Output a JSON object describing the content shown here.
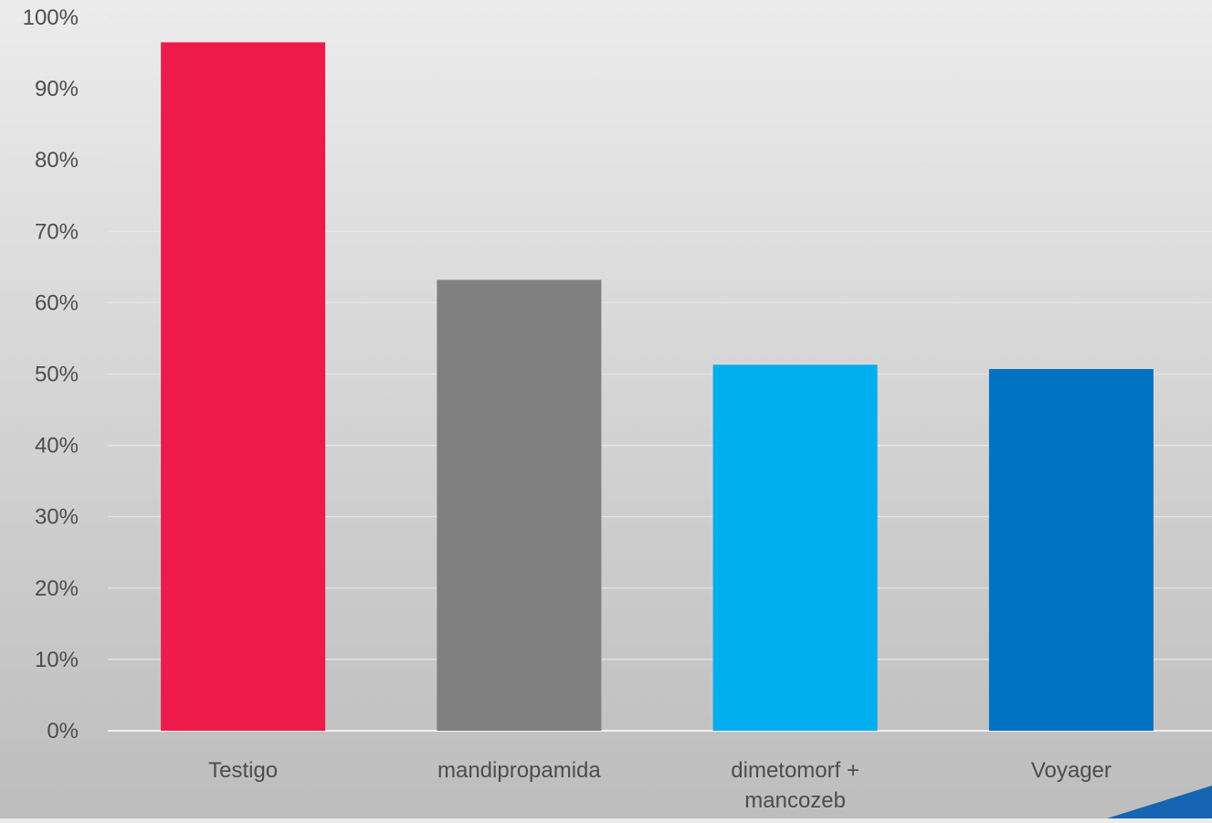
{
  "chart_data": {
    "type": "bar",
    "categories": [
      "Testigo",
      "mandipropamida",
      "dimetomorf + mancozeb",
      "Voyager"
    ],
    "category_lines": [
      [
        "Testigo"
      ],
      [
        "mandipropamida"
      ],
      [
        "dimetomorf +",
        "mancozeb"
      ],
      [
        "Voyager"
      ]
    ],
    "values": [
      96.5,
      63.2,
      51.3,
      50.7
    ],
    "bar_colors": [
      "#ee1a4a",
      "#808080",
      "#00adee",
      "#0072c2"
    ],
    "ylim": [
      0,
      100
    ],
    "yticks": [
      0,
      10,
      20,
      30,
      40,
      50,
      60,
      70,
      80,
      90,
      100
    ],
    "ytick_labels": [
      "0%",
      "10%",
      "20%",
      "30%",
      "40%",
      "50%",
      "60%",
      "70%",
      "80%",
      "90%",
      "100%"
    ],
    "grid": true,
    "title": "",
    "xlabel": "",
    "ylabel": ""
  },
  "colors": {
    "gridline": "#e6e6e6",
    "axis_text": "#4d4d4d",
    "accent": "#1565b2"
  }
}
